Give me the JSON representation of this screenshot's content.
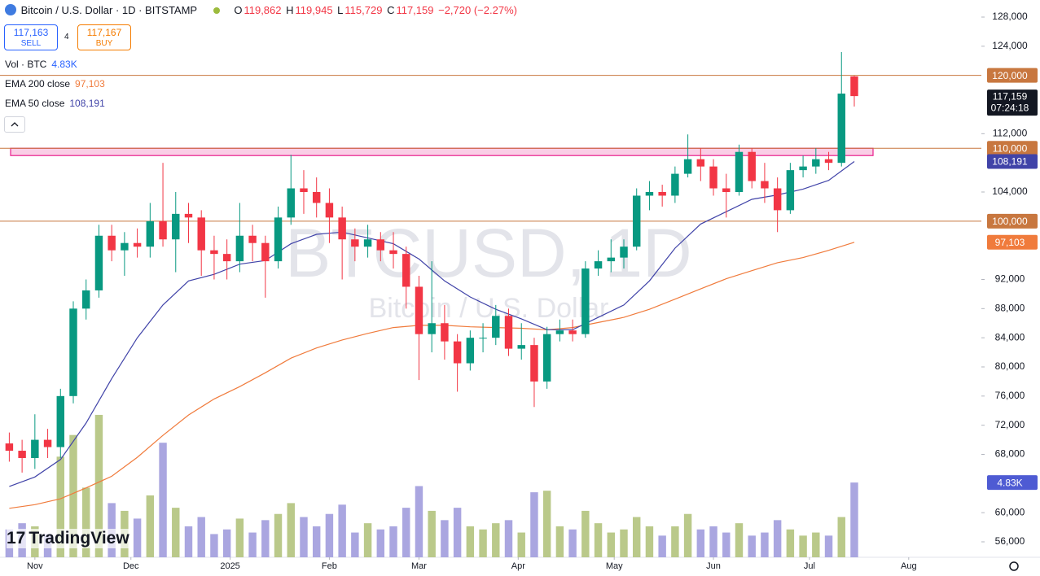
{
  "header": {
    "symbol": "Bitcoin / U.S. Dollar · 1D · BITSTAMP",
    "o_label": "O",
    "o": "119,862",
    "h_label": "H",
    "h": "119,945",
    "l_label": "L",
    "l": "115,729",
    "c_label": "C",
    "c": "117,159",
    "change": "−2,720 (−2.27%)"
  },
  "trade": {
    "sell_price": "117,163",
    "sell": "SELL",
    "spread": "4",
    "buy_price": "117,167",
    "buy": "BUY"
  },
  "watermark": {
    "ticker": "BTCUSD, 1D",
    "description": "Bitcoin / U.S. Dollar"
  },
  "logo": "TradingView",
  "chart_data": {
    "type": "candlestick",
    "x": [
      -8,
      -4,
      0,
      4,
      8,
      12,
      16,
      20,
      24,
      28,
      32,
      36,
      40,
      44,
      48,
      52,
      56,
      60,
      64,
      68,
      72,
      76,
      80,
      84,
      88,
      92,
      96,
      100,
      104,
      108,
      112,
      116,
      120,
      124,
      128,
      132,
      136,
      140,
      144,
      148,
      152,
      156,
      160,
      164,
      168,
      172,
      176,
      180,
      184,
      188,
      192,
      196,
      200,
      204,
      208,
      212,
      216,
      220,
      224,
      228,
      232,
      236,
      240,
      244,
      248,
      252,
      256
    ],
    "open": [
      69500,
      68500,
      67500,
      70000,
      69000,
      76000,
      88000,
      90500,
      98000,
      96000,
      97000,
      96500,
      100000,
      97500,
      101000,
      100500,
      96000,
      95500,
      94500,
      98000,
      97000,
      94500,
      100500,
      104500,
      104000,
      102500,
      100500,
      97500,
      96500,
      97500,
      96000,
      95500,
      91000,
      84500,
      86000,
      83500,
      80500,
      84000,
      84000,
      87000,
      82500,
      83000,
      78000,
      84500,
      85000,
      84500,
      93500,
      94500,
      95000,
      96500,
      103500,
      104000,
      103500,
      106500,
      108500,
      107500,
      104500,
      104000,
      109500,
      105500,
      104500,
      101500,
      107000,
      107500,
      108500,
      108000,
      119862
    ],
    "high": [
      71000,
      70000,
      73500,
      71500,
      77000,
      89000,
      92000,
      99500,
      99500,
      98500,
      99000,
      102500,
      108000,
      104000,
      102500,
      101500,
      98000,
      97500,
      102500,
      99500,
      98000,
      102000,
      109100,
      107000,
      106000,
      104500,
      102000,
      99000,
      99500,
      98500,
      98500,
      96500,
      92500,
      94500,
      88500,
      84500,
      85000,
      86000,
      88500,
      88000,
      86000,
      84000,
      85500,
      86500,
      86500,
      94500,
      96000,
      97500,
      97500,
      104500,
      105500,
      105000,
      107500,
      111900,
      110000,
      108500,
      106500,
      110500,
      110000,
      108000,
      106000,
      108000,
      109000,
      110000,
      109500,
      123200,
      119945
    ],
    "low": [
      67000,
      65500,
      66000,
      67500,
      67500,
      75000,
      86500,
      89500,
      94500,
      92500,
      95000,
      95000,
      96500,
      93000,
      97000,
      92500,
      92000,
      92000,
      93000,
      94500,
      89500,
      93500,
      99500,
      101000,
      100500,
      97000,
      92000,
      94500,
      95000,
      94500,
      93500,
      88000,
      78200,
      82000,
      81000,
      76600,
      79500,
      82000,
      83000,
      81500,
      81000,
      74500,
      77000,
      83500,
      83500,
      84000,
      92500,
      93000,
      93500,
      96000,
      101500,
      102000,
      102500,
      106000,
      105500,
      103500,
      100500,
      103500,
      104500,
      102500,
      98500,
      101000,
      106000,
      106500,
      107000,
      107500,
      115729
    ],
    "close": [
      68500,
      67500,
      70000,
      69000,
      76000,
      88000,
      90500,
      98000,
      96000,
      97000,
      96500,
      100000,
      97500,
      101000,
      100500,
      96000,
      95500,
      94500,
      98000,
      97000,
      94500,
      100500,
      104500,
      104000,
      102500,
      100500,
      97500,
      96500,
      97500,
      96000,
      95500,
      91000,
      84500,
      86000,
      83500,
      80500,
      84000,
      84000,
      87000,
      82500,
      83000,
      78000,
      84500,
      85000,
      84500,
      93500,
      94500,
      95000,
      96500,
      103500,
      104000,
      103500,
      106500,
      108500,
      107500,
      104500,
      104000,
      109500,
      105500,
      104500,
      101500,
      107000,
      107500,
      108500,
      108000,
      117500,
      117159
    ],
    "up_color": "#089981",
    "down_color": "#f23645",
    "last_label": "117,159",
    "countdown": "07:24:18",
    "xlim": [
      -10.9,
      295.7
    ],
    "ylim": [
      53879,
      130344
    ],
    "yticks": [
      {
        "value": 128000,
        "label": "128,000"
      },
      {
        "value": 124000,
        "label": "124,000"
      },
      {
        "value": 112000,
        "label": "112,000"
      },
      {
        "value": 104000,
        "label": "104,000"
      },
      {
        "value": 92000,
        "label": "92,000"
      },
      {
        "value": 88000,
        "label": "88,000"
      },
      {
        "value": 84000,
        "label": "84,000"
      },
      {
        "value": 80000,
        "label": "80,000"
      },
      {
        "value": 76000,
        "label": "76,000"
      },
      {
        "value": 72000,
        "label": "72,000"
      },
      {
        "value": 68000,
        "label": "68,000"
      },
      {
        "value": 60000,
        "label": "60,000"
      },
      {
        "value": 56000,
        "label": "56,000"
      }
    ],
    "xticks": [
      {
        "value": 0,
        "label": "Nov"
      },
      {
        "value": 30,
        "label": "Dec"
      },
      {
        "value": 61,
        "label": "2025"
      },
      {
        "value": 92,
        "label": "Feb"
      },
      {
        "value": 120,
        "label": "Mar"
      },
      {
        "value": 151,
        "label": "Apr"
      },
      {
        "value": 181,
        "label": "May"
      },
      {
        "value": 212,
        "label": "Jun"
      },
      {
        "value": 242,
        "label": "Jul"
      },
      {
        "value": 273,
        "label": "Aug"
      }
    ],
    "hlines": [
      {
        "value": 120000,
        "label": "120,000",
        "color": "#c8773f"
      },
      {
        "value": 110000,
        "label": "110,000",
        "color": "#c8773f"
      },
      {
        "value": 100000,
        "label": "100,000",
        "color": "#c8773f"
      }
    ],
    "zone": {
      "from": 109000,
      "to": 110000,
      "color": "#e91e8c"
    },
    "series": [
      {
        "name": "EMA 200 close",
        "color": "#f07b3c",
        "axis_label": "97,103",
        "x": [
          -8,
          0,
          8,
          16,
          24,
          32,
          40,
          48,
          56,
          64,
          72,
          80,
          88,
          96,
          104,
          112,
          120,
          128,
          136,
          144,
          152,
          160,
          168,
          176,
          184,
          192,
          200,
          208,
          216,
          224,
          232,
          240,
          248,
          256
        ],
        "values": [
          60600,
          61100,
          61900,
          63400,
          65000,
          67600,
          70600,
          73400,
          75600,
          77300,
          79200,
          81200,
          82600,
          83700,
          84600,
          85400,
          85700,
          85700,
          85500,
          85400,
          85300,
          85100,
          85400,
          86100,
          86800,
          87900,
          89300,
          90700,
          92100,
          93200,
          94300,
          95000,
          96000,
          97103
        ]
      },
      {
        "name": "EMA 50 close",
        "color": "#4043a8",
        "axis_label": "108,191",
        "x": [
          -8,
          0,
          8,
          16,
          24,
          32,
          40,
          48,
          56,
          64,
          72,
          80,
          88,
          96,
          104,
          112,
          120,
          128,
          136,
          144,
          152,
          160,
          168,
          176,
          184,
          192,
          200,
          208,
          216,
          224,
          232,
          240,
          248,
          256
        ],
        "values": [
          63600,
          64900,
          67300,
          72300,
          78400,
          84000,
          88500,
          91800,
          92700,
          94100,
          94600,
          96900,
          98200,
          98500,
          97700,
          96900,
          94800,
          91800,
          89600,
          87900,
          86600,
          85100,
          85100,
          86800,
          88500,
          91800,
          96300,
          99600,
          101300,
          103000,
          103600,
          104400,
          105600,
          108191
        ]
      }
    ],
    "volume": {
      "name": "Vol · BTC",
      "value_label": "4.83K",
      "lim": [
        0,
        36
      ],
      "up_color": "#bac98a",
      "down_color": "#aaa6e0",
      "values": [
        1.8,
        2.2,
        2.0,
        1.5,
        6.5,
        7.9,
        4.5,
        9.2,
        3.5,
        3.0,
        2.5,
        4.0,
        7.4,
        3.2,
        2.0,
        2.6,
        1.5,
        1.8,
        2.5,
        1.6,
        2.4,
        2.8,
        3.5,
        2.6,
        2.0,
        2.8,
        3.4,
        1.6,
        2.2,
        1.8,
        2.0,
        3.2,
        4.6,
        3.0,
        2.4,
        3.2,
        2.0,
        1.8,
        2.2,
        2.4,
        1.6,
        4.2,
        4.3,
        2.0,
        1.8,
        3.0,
        2.2,
        1.6,
        1.8,
        2.6,
        2.0,
        1.4,
        2.0,
        2.8,
        1.8,
        2.0,
        1.6,
        2.2,
        1.4,
        1.6,
        2.4,
        1.8,
        1.4,
        1.6,
        1.4,
        2.6,
        4.83
      ]
    }
  }
}
